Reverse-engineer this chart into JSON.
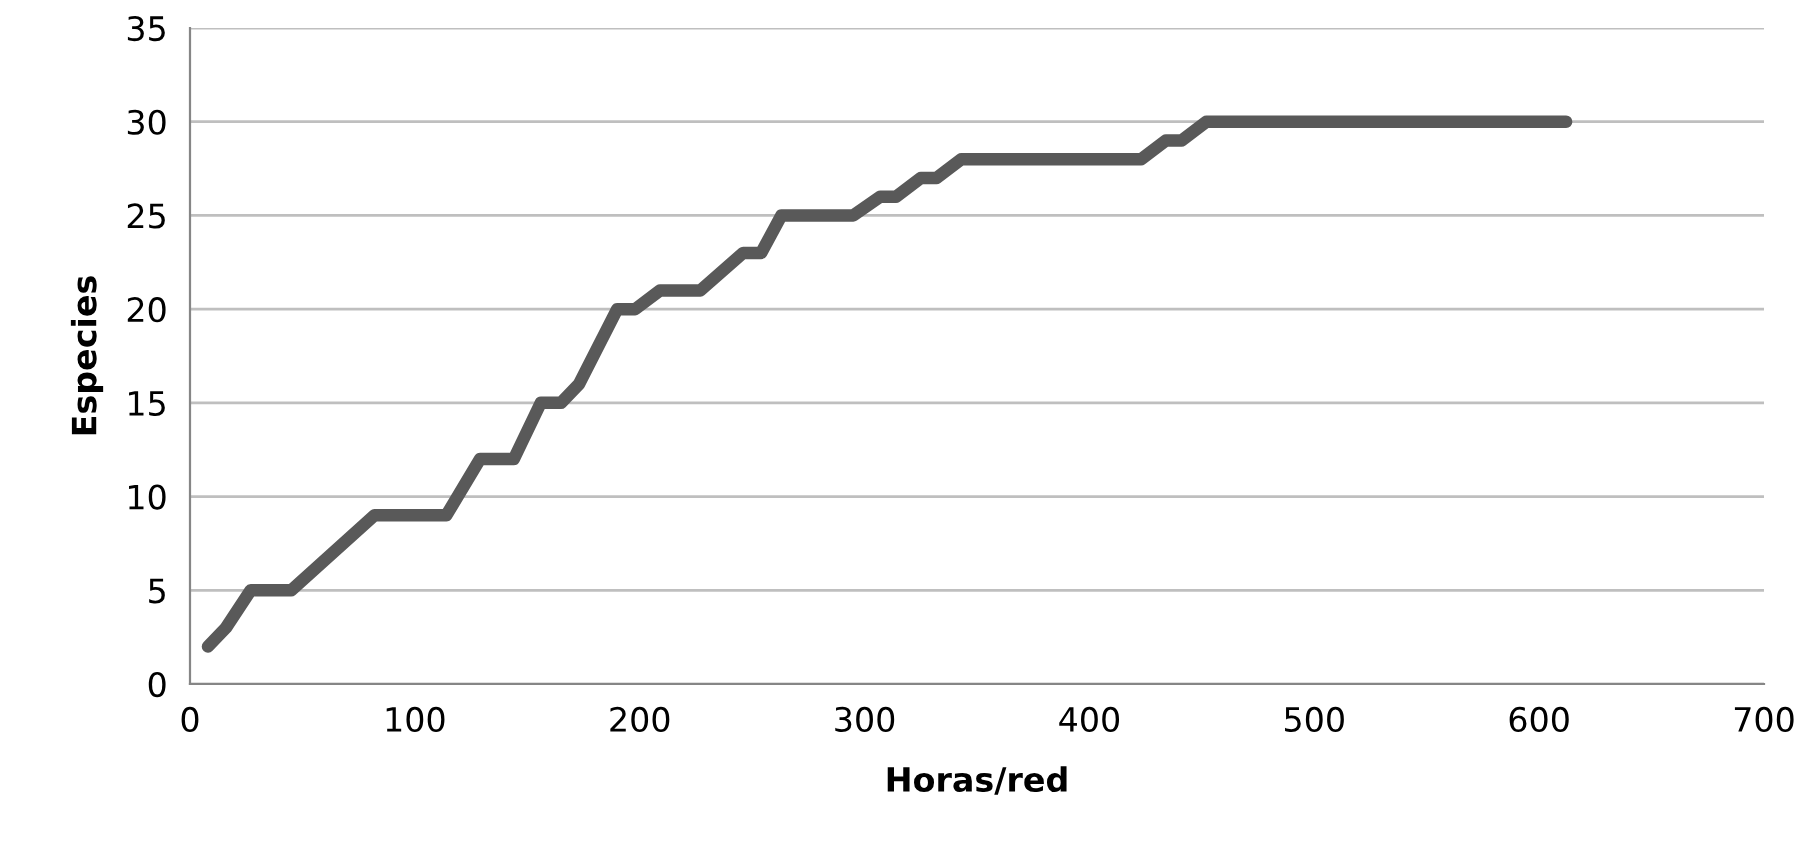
{
  "chart_data": {
    "type": "line",
    "xlabel": "Horas/red",
    "ylabel": "Especies",
    "series": [
      {
        "color": "#595959",
        "x": [
          8,
          16,
          27,
          45,
          82,
          114,
          129,
          144,
          156,
          165,
          173,
          190,
          198,
          209,
          227,
          246,
          254,
          263,
          280,
          295,
          307,
          314,
          325,
          332,
          343,
          423,
          434,
          441,
          452,
          612
        ],
        "values": [
          2,
          3,
          5,
          5,
          9,
          9,
          12,
          12,
          15,
          15,
          16,
          20,
          20,
          21,
          21,
          23,
          23,
          25,
          25,
          25,
          26,
          26,
          27,
          27,
          28,
          28,
          29,
          29,
          30,
          30
        ]
      }
    ],
    "xlim": [
      0,
      700
    ],
    "xticks": [
      0,
      100,
      200,
      300,
      400,
      500,
      600,
      700
    ],
    "ylim": [
      0,
      35
    ],
    "yticks": [
      0,
      5,
      10,
      15,
      20,
      25,
      30,
      35
    ],
    "grid": "y",
    "legend": false,
    "marker": "none",
    "line_style": "solid"
  }
}
